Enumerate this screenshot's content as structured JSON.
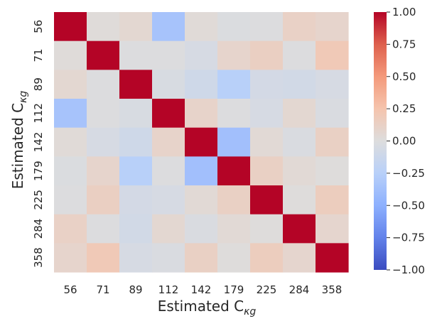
{
  "chart_data": {
    "type": "heatmap",
    "title": "",
    "xlabel_main": "Estimated C",
    "xlabel_sub": "κg",
    "ylabel_main": "Estimated C",
    "ylabel_sub": "κg",
    "row_labels": [
      "56",
      "71",
      "89",
      "112",
      "142",
      "179",
      "225",
      "284",
      "358"
    ],
    "col_labels": [
      "56",
      "71",
      "89",
      "112",
      "142",
      "179",
      "225",
      "284",
      "358"
    ],
    "values": [
      [
        1.0,
        0.02,
        0.06,
        -0.35,
        0.03,
        -0.02,
        -0.01,
        0.12,
        0.09
      ],
      [
        0.02,
        1.0,
        -0.01,
        -0.01,
        -0.05,
        0.09,
        0.14,
        -0.01,
        0.2
      ],
      [
        0.06,
        -0.01,
        1.0,
        -0.04,
        -0.1,
        -0.25,
        -0.07,
        -0.08,
        -0.05
      ],
      [
        -0.35,
        -0.01,
        -0.04,
        1.0,
        0.1,
        -0.01,
        -0.05,
        0.06,
        -0.03
      ],
      [
        0.03,
        -0.05,
        -0.1,
        0.1,
        1.0,
        -0.38,
        0.04,
        -0.03,
        0.13
      ],
      [
        -0.02,
        0.09,
        -0.25,
        -0.01,
        -0.38,
        1.0,
        0.13,
        0.04,
        0.01
      ],
      [
        -0.01,
        0.14,
        -0.07,
        -0.05,
        0.04,
        0.13,
        1.0,
        0.01,
        0.16
      ],
      [
        0.12,
        -0.01,
        -0.08,
        0.06,
        -0.03,
        0.04,
        0.01,
        1.0,
        0.08
      ],
      [
        0.09,
        0.2,
        -0.05,
        -0.03,
        0.13,
        0.01,
        0.16,
        0.08,
        1.0
      ]
    ],
    "colormap": "coolwarm",
    "vmin": -1.0,
    "vmax": 1.0,
    "colorbar_ticks": [
      1.0,
      0.75,
      0.5,
      0.25,
      0.0,
      -0.25,
      -0.5,
      -0.75,
      -1.0
    ],
    "colorbar_tick_labels": [
      "1.00",
      "0.75",
      "0.50",
      "0.25",
      "0.00",
      "−0.25",
      "−0.50",
      "−0.75",
      "−1.00"
    ]
  },
  "colors": {
    "text": "#262626",
    "background": "#ffffff"
  }
}
